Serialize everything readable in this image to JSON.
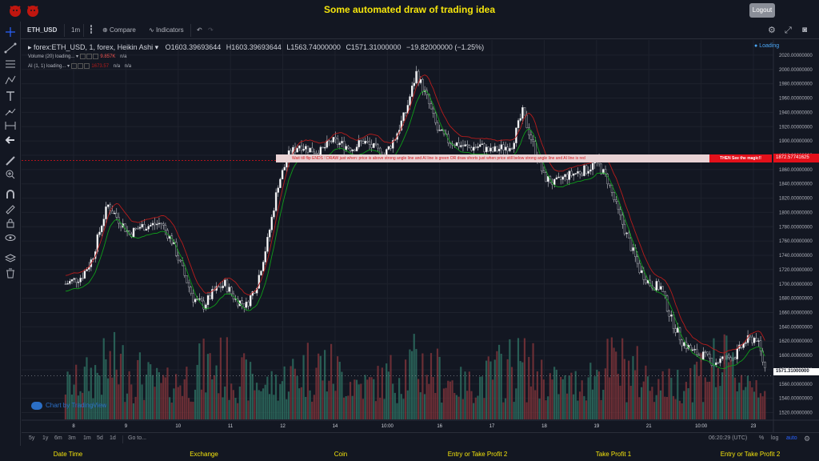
{
  "app": {
    "title": "Some automated draw of trading idea",
    "logout_label": "Logout"
  },
  "toolbar": {
    "symbol": "ETH_USD",
    "interval": "1m",
    "compare_label": "Compare",
    "indicators_label": "Indicators"
  },
  "legend": {
    "symbol_line": "forex:ETH_USD, 1, forex, Heikin Ashi",
    "open": "O1603.39693644",
    "high": "H1603.39693644",
    "low": "L1563.74000000",
    "close": "C1571.31000000",
    "change": "−19.82000000 (−1.25%)",
    "volume_label": "Volume (20) loading...",
    "volume_value": "9.857K",
    "volume_na": "n/a",
    "ai_label": "AI (1, 1) loading...",
    "ai_value": "1673.57",
    "ai_na1": "n/a",
    "ai_na2": "n/a",
    "loading": "Loading"
  },
  "banner": {
    "text": "Wait till flip ENDS !   DRAW just when:  price is above strong angle line and AI line is green       OR       draw shorts just when price still below strong angle line and AI line is red",
    "magic": "THEN See the magic!!"
  },
  "price_tags": {
    "signal": "1872.57741625",
    "last": "1571.31000000"
  },
  "watermark": "Chart by TradingView",
  "range_bar": {
    "ranges": [
      "5y",
      "1y",
      "6m",
      "3m",
      "1m",
      "5d",
      "1d"
    ],
    "goto": "Go to...",
    "clock": "06:20:29 (UTC)",
    "percent": "%",
    "log": "log",
    "auto": "auto"
  },
  "footer": {
    "columns": [
      "Date Time",
      "Exchange",
      "Coin",
      "Entry or Take Profit 2",
      "Take Profit 1",
      "Entry or Take Profit 2"
    ]
  },
  "colors": {
    "up": "#26a69a",
    "down": "#ef5350",
    "ai_green": "#0f9d1a",
    "ai_red": "#b71c1c",
    "title_yellow": "#f5e50c"
  },
  "chart_data": {
    "type": "candlestick",
    "ylim": [
      1515,
      2030
    ],
    "y_ticks": [
      "2020.00000000",
      "2000.00000000",
      "1980.00000000",
      "1960.00000000",
      "1940.00000000",
      "1920.00000000",
      "1900.00000000",
      "1880.00000000",
      "1860.00000000",
      "1840.00000000",
      "1820.00000000",
      "1800.00000000",
      "1780.00000000",
      "1760.00000000",
      "1740.00000000",
      "1720.00000000",
      "1700.00000000",
      "1680.00000000",
      "1660.00000000",
      "1640.00000000",
      "1620.00000000",
      "1600.00000000",
      "1580.00000000",
      "1560.00000000",
      "1540.00000000",
      "1520.00000000"
    ],
    "x_labels": [
      "8",
      "9",
      "10",
      "11",
      "12",
      "14",
      "10:00",
      "16",
      "17",
      "18",
      "19",
      "21",
      "10:00",
      "23"
    ],
    "price_path": [
      [
        0,
        1700
      ],
      [
        3,
        1710
      ],
      [
        5,
        1735
      ],
      [
        7,
        1790
      ],
      [
        8,
        1810
      ],
      [
        10,
        1790
      ],
      [
        12,
        1770
      ],
      [
        14,
        1780
      ],
      [
        16,
        1782
      ],
      [
        18,
        1785
      ],
      [
        20,
        1760
      ],
      [
        22,
        1720
      ],
      [
        24,
        1680
      ],
      [
        26,
        1670
      ],
      [
        28,
        1690
      ],
      [
        30,
        1700
      ],
      [
        32,
        1678
      ],
      [
        34,
        1670
      ],
      [
        36,
        1700
      ],
      [
        38,
        1760
      ],
      [
        40,
        1840
      ],
      [
        42,
        1880
      ],
      [
        44,
        1895
      ],
      [
        46,
        1888
      ],
      [
        48,
        1885
      ],
      [
        50,
        1900
      ],
      [
        52,
        1895
      ],
      [
        54,
        1890
      ],
      [
        56,
        1900
      ],
      [
        58,
        1890
      ],
      [
        60,
        1880
      ],
      [
        62,
        1905
      ],
      [
        64,
        1940
      ],
      [
        66,
        1995
      ],
      [
        68,
        1960
      ],
      [
        70,
        1915
      ],
      [
        72,
        1900
      ],
      [
        74,
        1895
      ],
      [
        76,
        1890
      ],
      [
        78,
        1893
      ],
      [
        80,
        1885
      ],
      [
        82,
        1890
      ],
      [
        84,
        1895
      ],
      [
        86,
        1940
      ],
      [
        88,
        1895
      ],
      [
        90,
        1850
      ],
      [
        92,
        1840
      ],
      [
        94,
        1850
      ],
      [
        96,
        1855
      ],
      [
        98,
        1860
      ],
      [
        100,
        1870
      ],
      [
        102,
        1845
      ],
      [
        104,
        1800
      ],
      [
        106,
        1760
      ],
      [
        108,
        1720
      ],
      [
        110,
        1700
      ],
      [
        112,
        1695
      ],
      [
        114,
        1650
      ],
      [
        116,
        1620
      ],
      [
        118,
        1605
      ],
      [
        120,
        1600
      ],
      [
        122,
        1590
      ],
      [
        124,
        1595
      ],
      [
        126,
        1600
      ],
      [
        128,
        1620
      ],
      [
        130,
        1625
      ],
      [
        132,
        1571
      ]
    ]
  }
}
